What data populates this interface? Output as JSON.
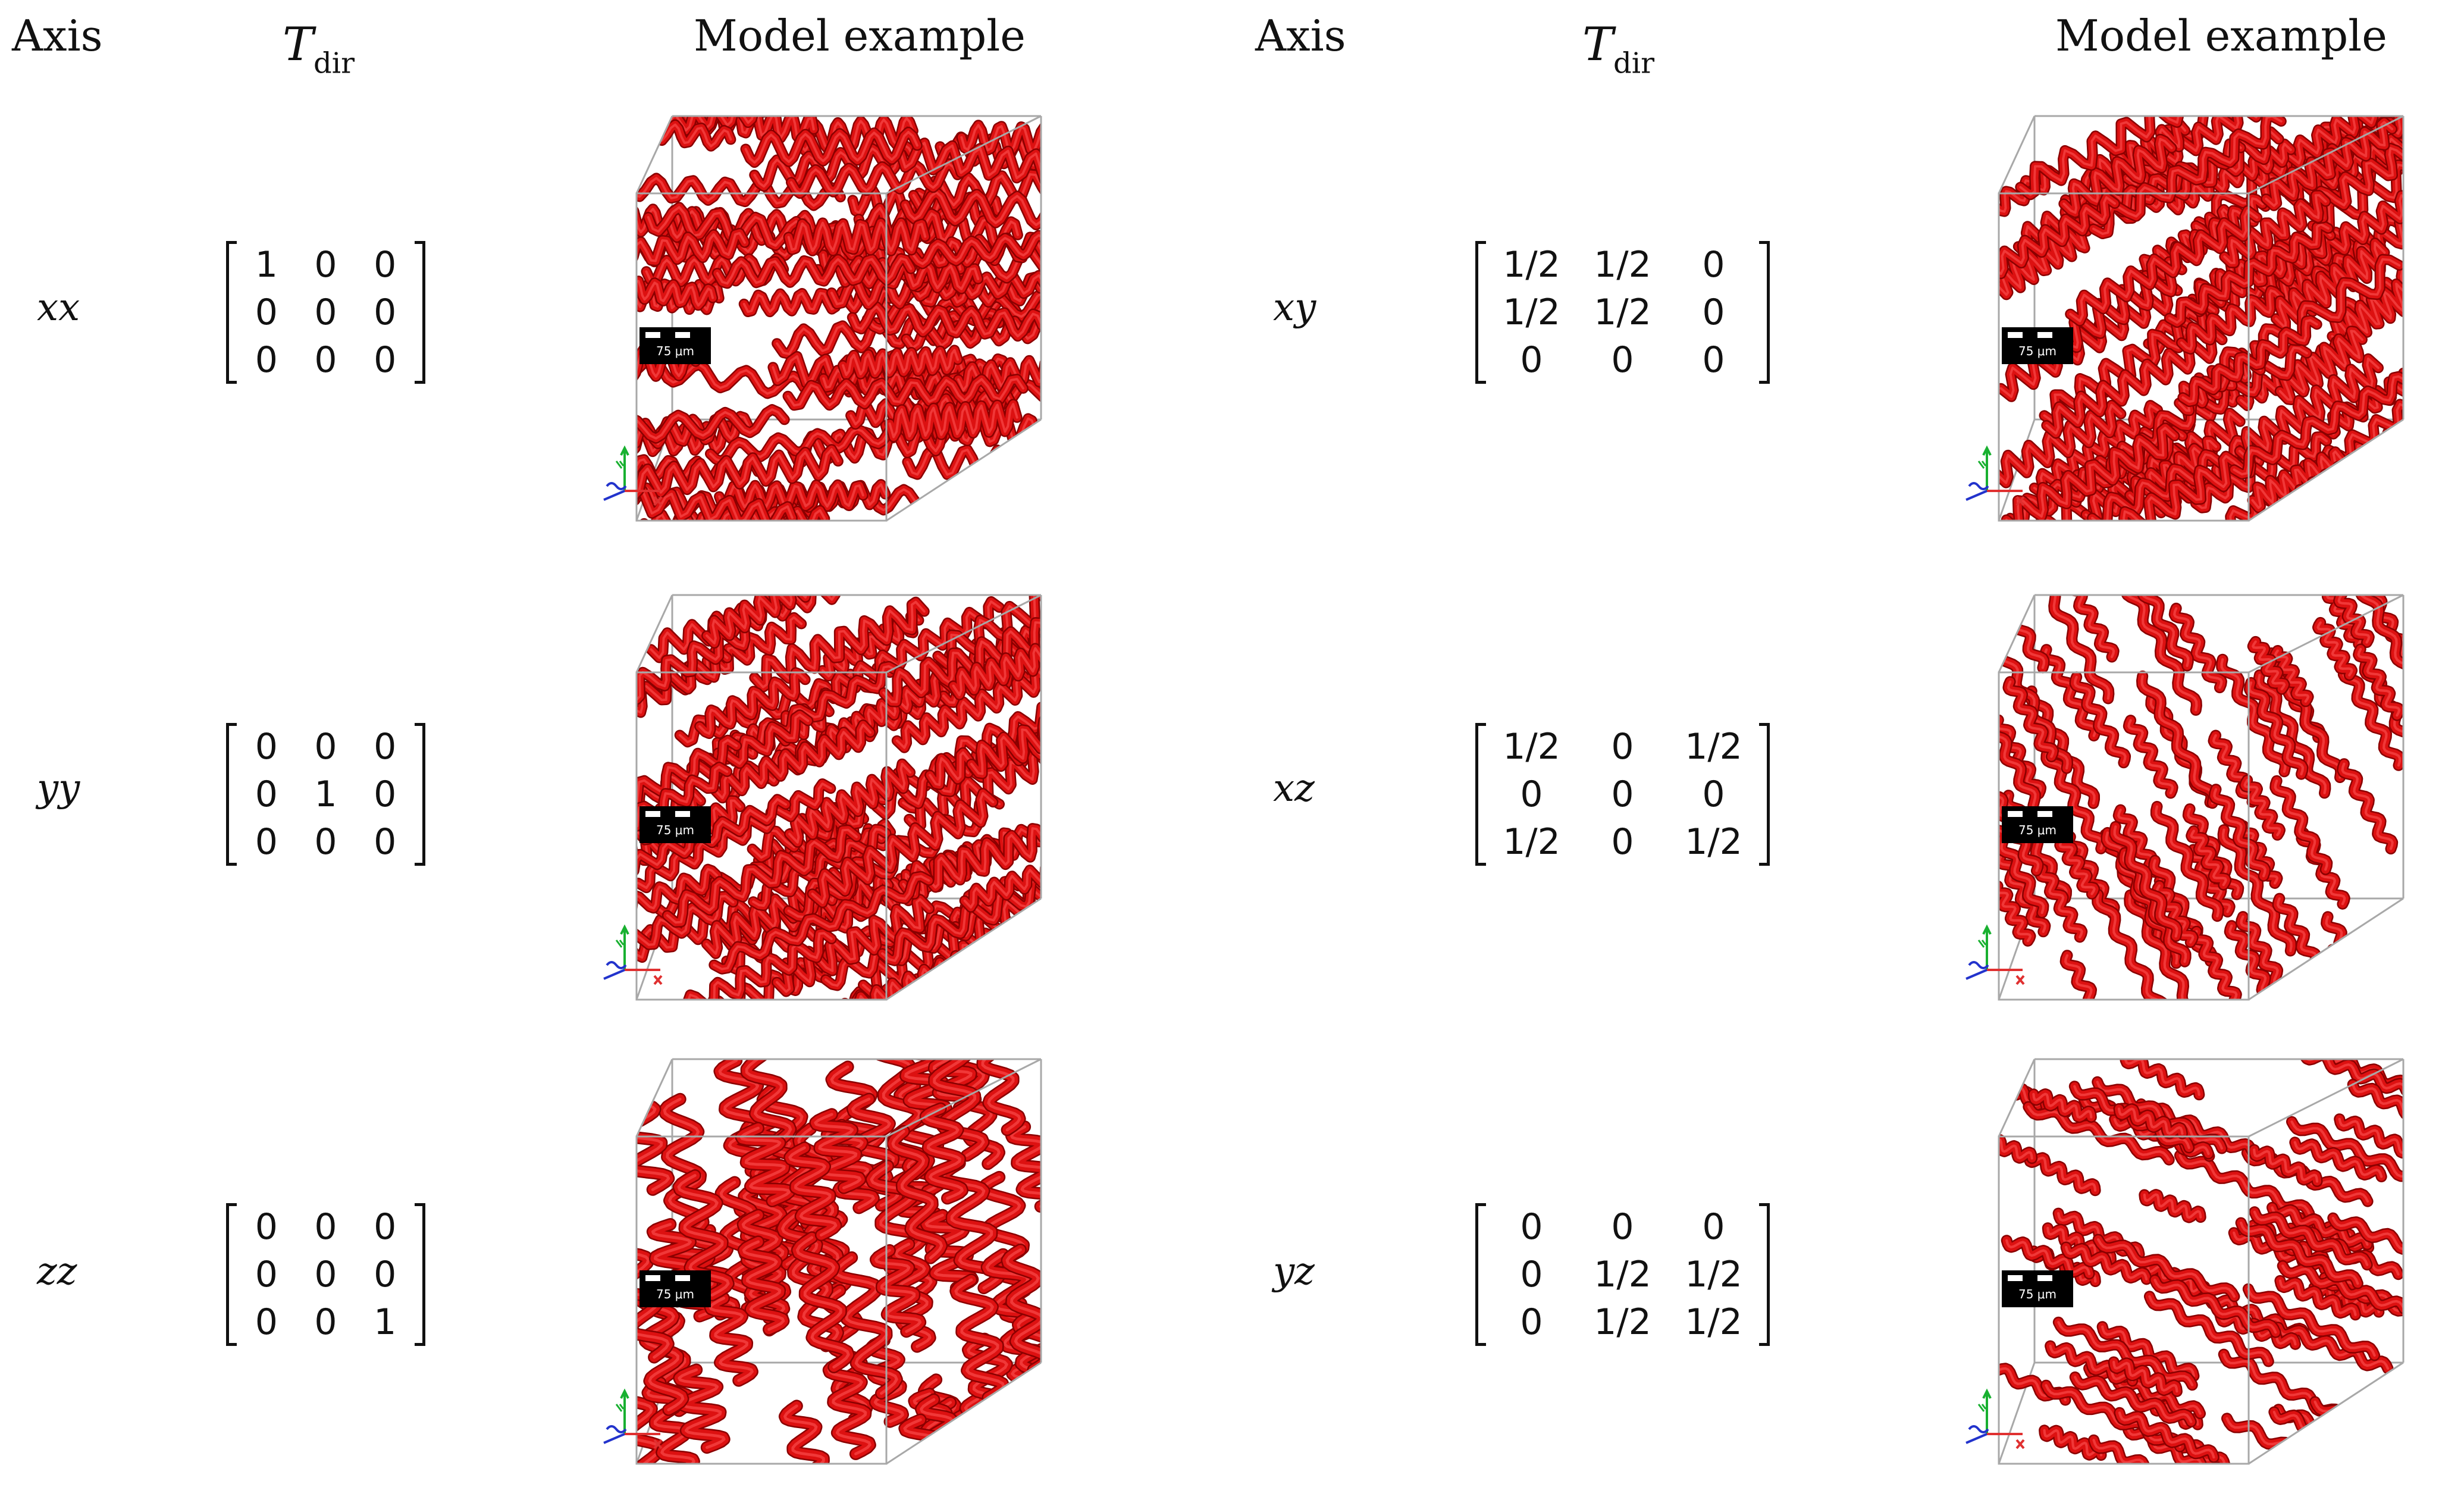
{
  "headers": {
    "axis": "Axis",
    "tdir_main": "T",
    "tdir_sub": "dir",
    "model_example": "Model example"
  },
  "rows": [
    {
      "axis": "xx",
      "matrix": [
        [
          "1",
          "0",
          "0"
        ],
        [
          "0",
          "0",
          "0"
        ],
        [
          "0",
          "0",
          "0"
        ]
      ],
      "scale_bar": "75 μm",
      "fiber_orientation": "x"
    },
    {
      "axis": "yy",
      "matrix": [
        [
          "0",
          "0",
          "0"
        ],
        [
          "0",
          "1",
          "0"
        ],
        [
          "0",
          "0",
          "0"
        ]
      ],
      "scale_bar": "75 μm",
      "fiber_orientation": "y"
    },
    {
      "axis": "zz",
      "matrix": [
        [
          "0",
          "0",
          "0"
        ],
        [
          "0",
          "0",
          "0"
        ],
        [
          "0",
          "0",
          "1"
        ]
      ],
      "scale_bar": "75 μm",
      "fiber_orientation": "z"
    },
    {
      "axis": "xy",
      "matrix": [
        [
          "1/2",
          "1/2",
          "0"
        ],
        [
          "1/2",
          "1/2",
          "0"
        ],
        [
          "0",
          "0",
          "0"
        ]
      ],
      "scale_bar": "75 μm",
      "fiber_orientation": "xy"
    },
    {
      "axis": "xz",
      "matrix": [
        [
          "1/2",
          "0",
          "1/2"
        ],
        [
          "0",
          "0",
          "0"
        ],
        [
          "1/2",
          "0",
          "1/2"
        ]
      ],
      "scale_bar": "75 μm",
      "fiber_orientation": "xz"
    },
    {
      "axis": "yz",
      "matrix": [
        [
          "0",
          "0",
          "0"
        ],
        [
          "0",
          "1/2",
          "1/2"
        ],
        [
          "0",
          "1/2",
          "1/2"
        ]
      ],
      "scale_bar": "75 μm",
      "fiber_orientation": "yz"
    }
  ],
  "colors": {
    "fiber": "#dd1111",
    "fiber_dark": "#8a0000",
    "fiber_light": "#ff5a5a",
    "box_edge": "#a8a8a8",
    "triad_x": "#e03030",
    "triad_y": "#18b030",
    "triad_z": "#2233cc"
  }
}
